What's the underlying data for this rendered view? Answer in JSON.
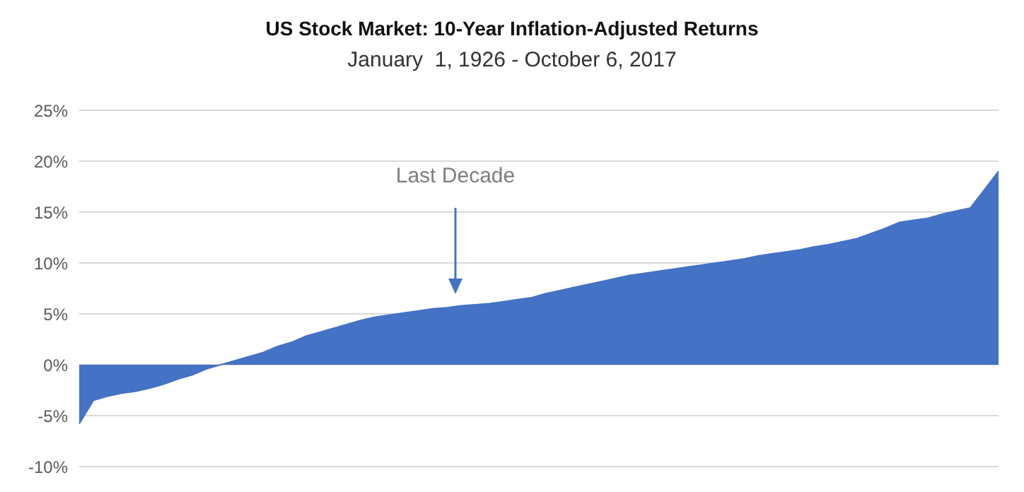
{
  "chart_data": {
    "type": "area",
    "title": "US Stock Market: 10-Year Inflation-Adjusted Returns",
    "subtitle": "January  1, 1926 - October 6, 2017",
    "categories": [
      null,
      null,
      null,
      null,
      null,
      null,
      null,
      null,
      null,
      null,
      null,
      null,
      null,
      null,
      null,
      null,
      null,
      null,
      null,
      null,
      null,
      null,
      null,
      null,
      null,
      null,
      null,
      null,
      null,
      null,
      null,
      null,
      null,
      null,
      null,
      null,
      null,
      null,
      null,
      null,
      null,
      null,
      null,
      null,
      null,
      null,
      null,
      null,
      null,
      null,
      null,
      null,
      null,
      null,
      null,
      null,
      null,
      null,
      null,
      null,
      null,
      null,
      null,
      null,
      null,
      null
    ],
    "values": [
      -5.8,
      -3.5,
      -3.1,
      -2.8,
      -2.6,
      -2.3,
      -1.9,
      -1.4,
      -1.0,
      -0.4,
      0.0,
      0.4,
      0.8,
      1.2,
      1.8,
      2.2,
      2.8,
      3.2,
      3.6,
      4.0,
      4.4,
      4.7,
      4.9,
      5.1,
      5.3,
      5.5,
      5.6,
      5.8,
      5.9,
      6.0,
      6.2,
      6.4,
      6.6,
      7.0,
      7.3,
      7.6,
      7.9,
      8.2,
      8.5,
      8.8,
      9.0,
      9.2,
      9.4,
      9.6,
      9.8,
      10.0,
      10.2,
      10.4,
      10.7,
      10.9,
      11.1,
      11.3,
      11.6,
      11.8,
      12.1,
      12.4,
      12.9,
      13.4,
      14.0,
      14.2,
      14.4,
      14.8,
      15.1,
      15.4,
      17.2,
      19.0
    ],
    "color": "#4472c4",
    "ylim": [
      -10,
      25
    ],
    "yticks": [
      {
        "value": -10,
        "label": "-10%"
      },
      {
        "value": -5,
        "label": "-5%"
      },
      {
        "value": 0,
        "label": "0%"
      },
      {
        "value": 5,
        "label": "5%"
      },
      {
        "value": 10,
        "label": "10%"
      },
      {
        "value": 15,
        "label": "15%"
      },
      {
        "value": 20,
        "label": "20%"
      },
      {
        "value": 25,
        "label": "25%"
      }
    ],
    "grid": "y",
    "tick_labels": "y",
    "annotations": [
      "Last Decade"
    ]
  }
}
